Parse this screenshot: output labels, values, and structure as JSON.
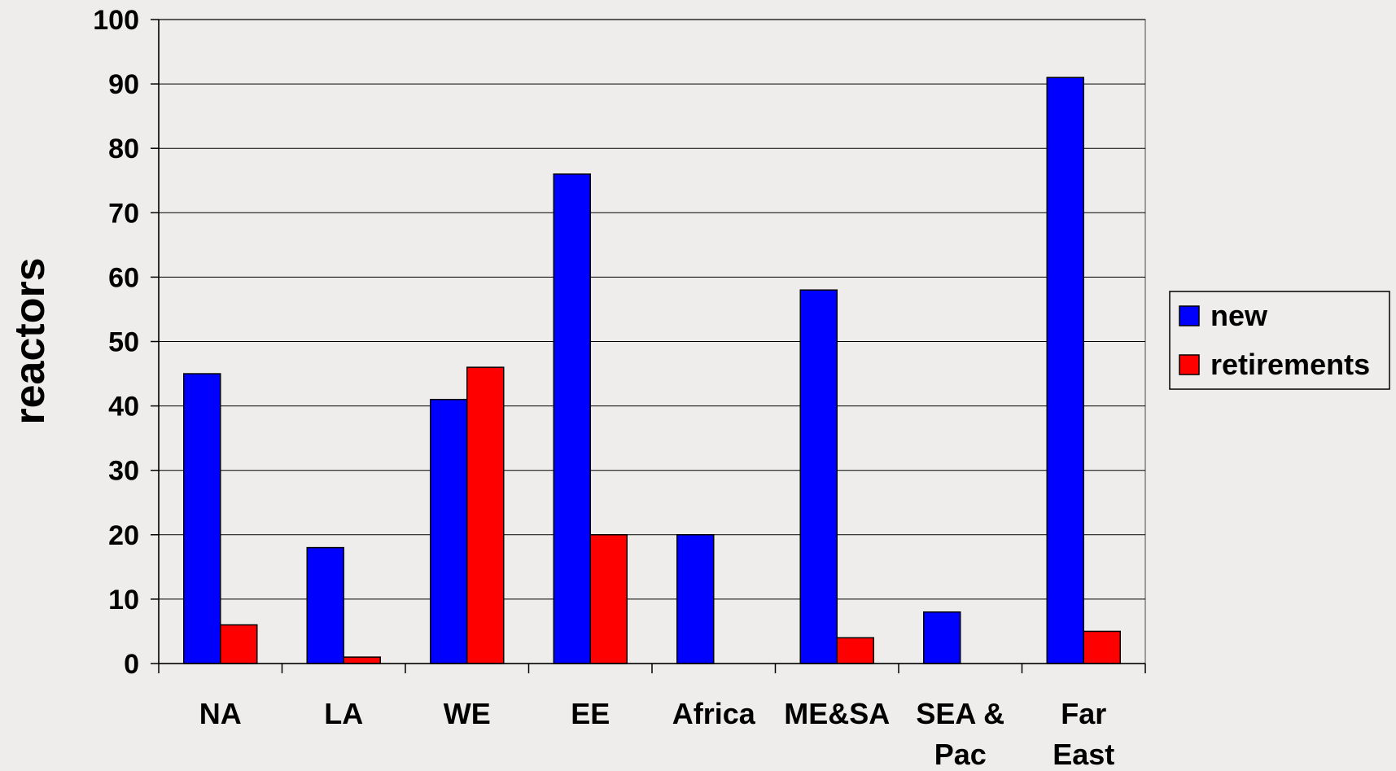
{
  "chart_data": {
    "type": "bar",
    "title": "",
    "xlabel": "",
    "ylabel": "reactors",
    "ylim": [
      0,
      100
    ],
    "yticks": [
      0,
      10,
      20,
      30,
      40,
      50,
      60,
      70,
      80,
      90,
      100
    ],
    "grid": true,
    "legend_position": "right",
    "categories": [
      [
        "NA"
      ],
      [
        "LA"
      ],
      [
        "WE"
      ],
      [
        "EE"
      ],
      [
        "Africa"
      ],
      [
        "ME&SA"
      ],
      [
        "SEA &",
        "Pac"
      ],
      [
        "Far",
        "East"
      ]
    ],
    "series": [
      {
        "name": "new",
        "color": "#0000ff",
        "values": [
          45,
          18,
          41,
          76,
          20,
          58,
          8,
          91
        ]
      },
      {
        "name": "retirements",
        "color": "#ff0000",
        "values": [
          6,
          1,
          46,
          20,
          0,
          4,
          0,
          5
        ]
      }
    ]
  }
}
